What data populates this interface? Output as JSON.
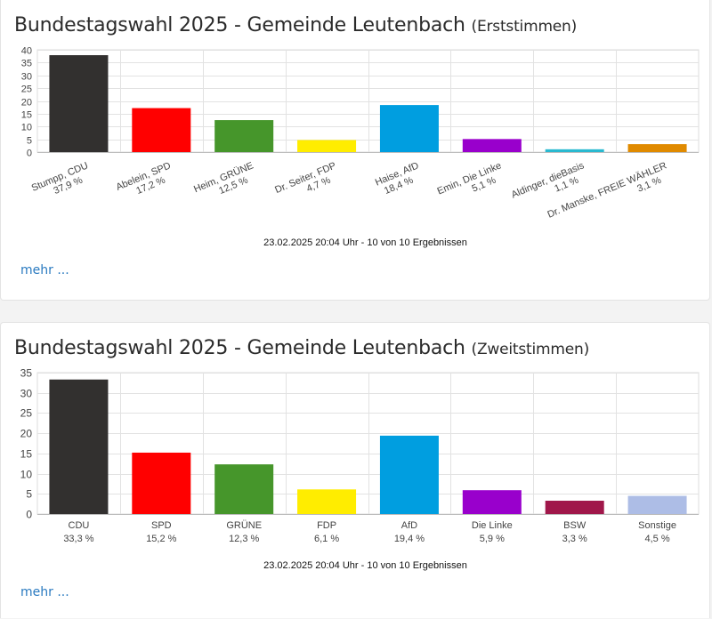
{
  "chart_data": [
    {
      "type": "bar",
      "title": "Bundestagswahl 2025 - Gemeinde Leutenbach",
      "subtitle": "(Erststimmen)",
      "categories": [
        "Stumpp, CDU",
        "Abelein, SPD",
        "Heim, GRÜNE",
        "Dr. Seiter, FDP",
        "Haise, AfD",
        "Emin, Die Linke",
        "Aldinger, dieBasis",
        "Dr. Manske, FREIE WÄHLER"
      ],
      "values": [
        37.9,
        17.2,
        12.5,
        4.7,
        18.4,
        5.1,
        1.1,
        3.1
      ],
      "value_labels": [
        "37,9 %",
        "17,2 %",
        "12,5 %",
        "4,7 %",
        "18,4 %",
        "5,1 %",
        "1,1 %",
        "3,1 %"
      ],
      "colors": [
        "#32302f",
        "#ff0000",
        "#46962b",
        "#ffed00",
        "#009ee0",
        "#9900cc",
        "#29b9d0",
        "#e08a00"
      ],
      "yticks": [
        0,
        5,
        10,
        15,
        20,
        25,
        30,
        35,
        40
      ],
      "ylim": [
        0,
        40
      ],
      "xlabel": "",
      "ylabel": "",
      "label_style": "rotated",
      "grid": true,
      "footer": "23.02.2025 20:04 Uhr - 10 von 10 Ergebnissen",
      "more_label": "mehr ..."
    },
    {
      "type": "bar",
      "title": "Bundestagswahl 2025 - Gemeinde Leutenbach",
      "subtitle": "(Zweitstimmen)",
      "categories": [
        "CDU",
        "SPD",
        "GRÜNE",
        "FDP",
        "AfD",
        "Die Linke",
        "BSW",
        "Sonstige"
      ],
      "values": [
        33.3,
        15.2,
        12.3,
        6.1,
        19.4,
        5.9,
        3.3,
        4.5
      ],
      "value_labels": [
        "33,3 %",
        "15,2 %",
        "12,3 %",
        "6,1 %",
        "19,4 %",
        "5,9 %",
        "3,3 %",
        "4,5 %"
      ],
      "colors": [
        "#32302f",
        "#ff0000",
        "#46962b",
        "#ffed00",
        "#009ee0",
        "#9900cc",
        "#a0174a",
        "#adbde6"
      ],
      "yticks": [
        0,
        5,
        10,
        15,
        20,
        25,
        30,
        35
      ],
      "ylim": [
        0,
        35
      ],
      "xlabel": "",
      "ylabel": "",
      "label_style": "horizontal",
      "grid": true,
      "footer": "23.02.2025 20:04 Uhr - 10 von 10 Ergebnissen",
      "more_label": "mehr ..."
    }
  ]
}
